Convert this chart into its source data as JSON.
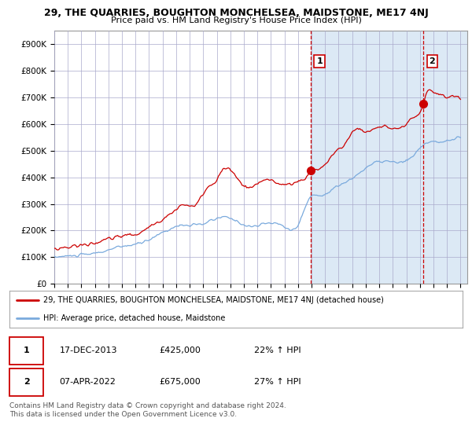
{
  "title": "29, THE QUARRIES, BOUGHTON MONCHELSEA, MAIDSTONE, ME17 4NJ",
  "subtitle": "Price paid vs. HM Land Registry's House Price Index (HPI)",
  "hpi_line_color": "#7aaadd",
  "price_line_color": "#cc0000",
  "background_color": "#ffffff",
  "chart_bg_color": "#dce9f5",
  "chart_bg_left_color": "#ffffff",
  "grid_color": "#aaaacc",
  "ylim": [
    0,
    950000
  ],
  "yticks": [
    0,
    100000,
    200000,
    300000,
    400000,
    500000,
    600000,
    700000,
    800000,
    900000
  ],
  "ytick_labels": [
    "£0",
    "£100K",
    "£200K",
    "£300K",
    "£400K",
    "£500K",
    "£600K",
    "£700K",
    "£800K",
    "£900K"
  ],
  "point1_x": 2013.96,
  "point1_y": 425000,
  "point2_x": 2022.27,
  "point2_y": 675000,
  "vline1_x": 2013.96,
  "vline2_x": 2022.27,
  "legend_line1": "29, THE QUARRIES, BOUGHTON MONCHELSEA, MAIDSTONE, ME17 4NJ (detached house)",
  "legend_line2": "HPI: Average price, detached house, Maidstone",
  "table_row1": [
    "1",
    "17-DEC-2013",
    "£425,000",
    "22% ↑ HPI"
  ],
  "table_row2": [
    "2",
    "07-APR-2022",
    "£675,000",
    "27% ↑ HPI"
  ],
  "footnote": "Contains HM Land Registry data © Crown copyright and database right 2024.\nThis data is licensed under the Open Government Licence v3.0.",
  "xmin": 1995.0,
  "xmax": 2025.5
}
